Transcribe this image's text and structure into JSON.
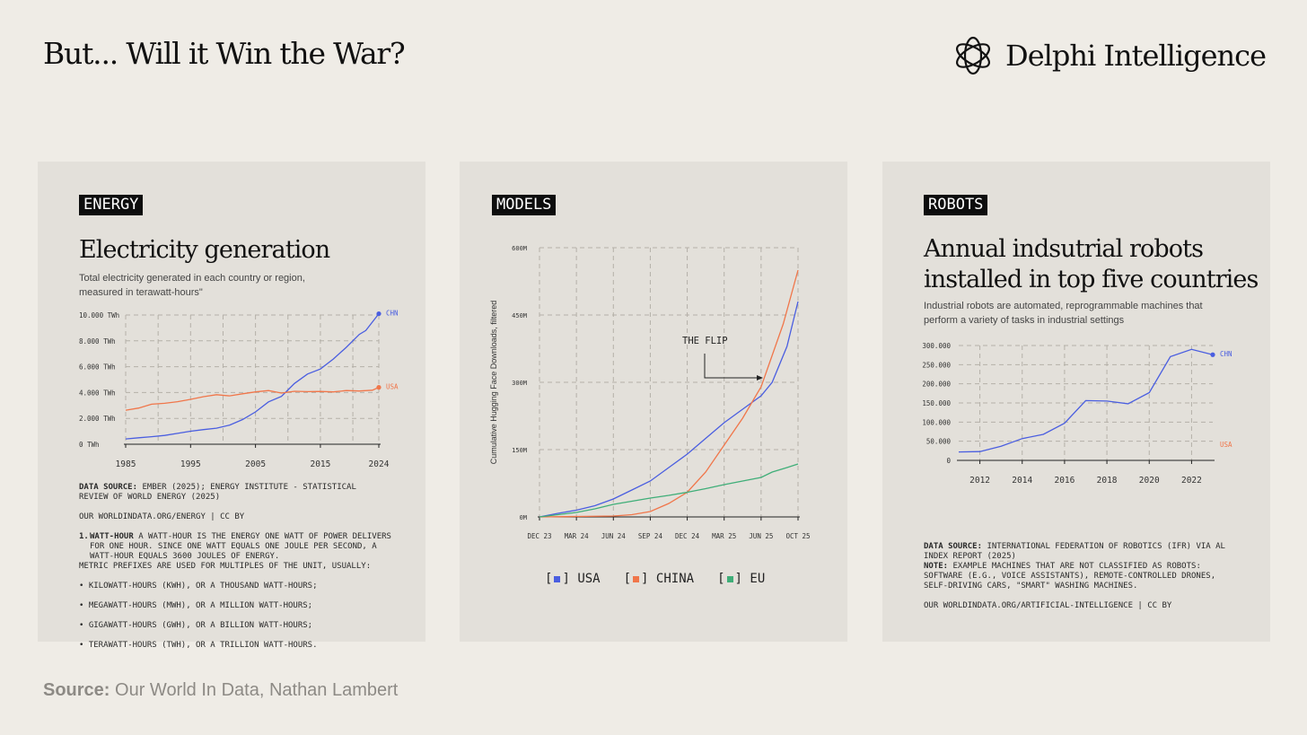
{
  "header": {
    "title": "But... Will it Win the War?",
    "brand": "Delphi Intelligence"
  },
  "panels": {
    "energy": {
      "tag": "ENERGY",
      "title": "Electricity generation",
      "subtitle": "Total electricity generated in each country or region, measured in terawatt-hours\"",
      "data_source_label": "DATA SOURCE:",
      "data_source": "EMBER (2025); ENERGY INSTITUTE - STATISTICAL REVIEW OF WORLD ENERGY (2025)",
      "attribution": "OUR WORLDINDATA.ORG/ENERGY | CC BY",
      "footnote_num": "1.",
      "footnote_label": "WATT-HOUR",
      "footnote_text": "A WATT-HOUR IS THE ENERGY ONE WATT OF POWER DELIVERS FOR ONE HOUR. SINCE ONE WATT EQUALS ONE JOULE PER SECOND, A WATT-HOUR EQUALS 3600 JOULES OF ENERGY.",
      "prefix_note": "METRIC PREFIXES ARE USED FOR MULTIPLES OF THE UNIT, USUALLY:",
      "prefix_items": [
        "KILOWATT-HOURS (KWH), OR A THOUSAND WATT-HOURS;",
        "MEGAWATT-HOURS (MWH), OR A MILLION WATT-HOURS;",
        "GIGAWATT-HOURS (GWH), OR A BILLION WATT-HOURS;",
        "TERAWATT-HOURS (TWH), OR A TRILLION WATT-HOURS."
      ]
    },
    "models": {
      "tag": "MODELS",
      "annotation": "THE FLIP",
      "legend": [
        "USA",
        "CHINA",
        "EU"
      ],
      "legend_open": "[",
      "legend_close": "]"
    },
    "robots": {
      "tag": "ROBOTS",
      "title_line1": "Annual indsutrial robots",
      "title_line2": "installed in top five countries",
      "subtitle": "Industrial robots are automated, reprogrammable machines that perform a variety of tasks in industrial settings",
      "data_source_label": "DATA SOURCE:",
      "data_source": "INTERNATIONAL FEDERATION OF ROBOTICS (IFR) VIA AL INDEX REPORT (2025)",
      "note_label": "NOTE:",
      "note": "EXAMPLE MACHINES THAT ARE NOT CLASSIFIED AS ROBOTS: SOFTWARE (E.G., VOICE ASSISTANTS), REMOTE-CONTROLLED DRONES, SELF-DRIVING CARS, \"SMART\" WASHING MACHINES.",
      "attribution": "OUR WORLDINDATA.ORG/ARTIFICIAL-INTELLIGENCE | CC BY"
    }
  },
  "source": {
    "label": "Source:",
    "text": " Our World In Data, Nathan Lambert"
  },
  "colors": {
    "usa": "#4a5ee0",
    "china": "#f0764a",
    "eu": "#3fae78",
    "grid": "#b4b0a8"
  },
  "chart_data": [
    {
      "type": "line",
      "title": "Electricity generation",
      "ylabel": "",
      "ylim": [
        0,
        10000
      ],
      "xlim": [
        1985,
        2024
      ],
      "x_ticks": [
        "1985",
        "1995",
        "2005",
        "2015",
        "2024"
      ],
      "y_ticks": [
        "0 TWh",
        "2.000 TWh",
        "4.000 TWh",
        "6.000 TWh",
        "8.000 TWh",
        "10.000 TWh"
      ],
      "grid": true,
      "series": [
        {
          "name": "CHN",
          "color": "#4a5ee0",
          "x": [
            1985,
            1987,
            1989,
            1991,
            1993,
            1995,
            1997,
            1999,
            2001,
            2003,
            2005,
            2007,
            2009,
            2011,
            2013,
            2015,
            2017,
            2019,
            2021,
            2022,
            2023,
            2024
          ],
          "y": [
            410,
            500,
            580,
            680,
            840,
            1010,
            1130,
            1240,
            1480,
            1910,
            2500,
            3280,
            3700,
            4700,
            5430,
            5820,
            6600,
            7500,
            8500,
            8800,
            9450,
            10100
          ]
        },
        {
          "name": "USA",
          "color": "#f0764a",
          "x": [
            1985,
            1987,
            1989,
            1991,
            1993,
            1995,
            1997,
            1999,
            2001,
            2003,
            2005,
            2007,
            2009,
            2011,
            2013,
            2015,
            2017,
            2019,
            2021,
            2023,
            2024
          ],
          "y": [
            2630,
            2800,
            3100,
            3170,
            3290,
            3470,
            3680,
            3830,
            3740,
            3900,
            4050,
            4150,
            3960,
            4100,
            4070,
            4080,
            4050,
            4150,
            4120,
            4180,
            4400
          ]
        }
      ]
    },
    {
      "type": "line",
      "title": "",
      "ylabel": "Cumulative Hugging Face Downloads, filtered",
      "ylim": [
        0,
        600
      ],
      "x_ticks": [
        "DEC 23",
        "MAR 24",
        "JUN 24",
        "SEP 24",
        "DEC 24",
        "MAR 25",
        "JUN 25",
        "OCT 25"
      ],
      "y_ticks": [
        "0M",
        "150M",
        "300M",
        "450M",
        "600M"
      ],
      "grid": true,
      "legend": "bottom",
      "series": [
        {
          "name": "USA",
          "color": "#4a5ee0",
          "x": [
            0,
            0.5,
            1,
            1.5,
            2,
            2.5,
            3,
            3.5,
            4,
            4.5,
            5,
            5.5,
            6,
            6.3,
            6.7,
            7
          ],
          "y": [
            0,
            8,
            15,
            25,
            40,
            60,
            80,
            110,
            140,
            175,
            210,
            240,
            270,
            300,
            380,
            480
          ]
        },
        {
          "name": "CHINA",
          "color": "#f0764a",
          "x": [
            0,
            1,
            2,
            2.5,
            3,
            3.5,
            4,
            4.5,
            5,
            5.5,
            6,
            6.3,
            6.6,
            7
          ],
          "y": [
            0,
            1,
            2,
            5,
            12,
            30,
            55,
            100,
            160,
            220,
            290,
            360,
            430,
            550
          ]
        },
        {
          "name": "EU",
          "color": "#3fae78",
          "x": [
            0,
            1,
            1.5,
            2,
            2.5,
            3,
            3.5,
            4,
            4.5,
            5,
            5.5,
            6,
            6.3,
            6.7,
            7
          ],
          "y": [
            0,
            10,
            18,
            28,
            35,
            42,
            48,
            55,
            63,
            72,
            80,
            88,
            100,
            110,
            118
          ]
        }
      ]
    },
    {
      "type": "line",
      "title": "Annual indsutrial robots installed in top five countries",
      "ylabel": "",
      "ylim": [
        0,
        300000
      ],
      "xlim": [
        2011,
        2023
      ],
      "x_ticks": [
        "2012",
        "2014",
        "2016",
        "2018",
        "2020",
        "2022"
      ],
      "y_ticks": [
        "0",
        "50.000",
        "100.000",
        "150.000",
        "200.000",
        "250.000",
        "300.000"
      ],
      "grid": true,
      "series": [
        {
          "name": "CHN",
          "color": "#4a5ee0",
          "x": [
            2011,
            2012,
            2013,
            2014,
            2015,
            2016,
            2017,
            2018,
            2019,
            2020,
            2021,
            2022,
            2023
          ],
          "y": [
            22000,
            23000,
            37000,
            57000,
            68000,
            97000,
            156000,
            155000,
            148000,
            177000,
            271000,
            290000,
            276000
          ]
        }
      ],
      "extra_labels": [
        {
          "name": "USA",
          "color": "#f0764a"
        }
      ]
    }
  ]
}
